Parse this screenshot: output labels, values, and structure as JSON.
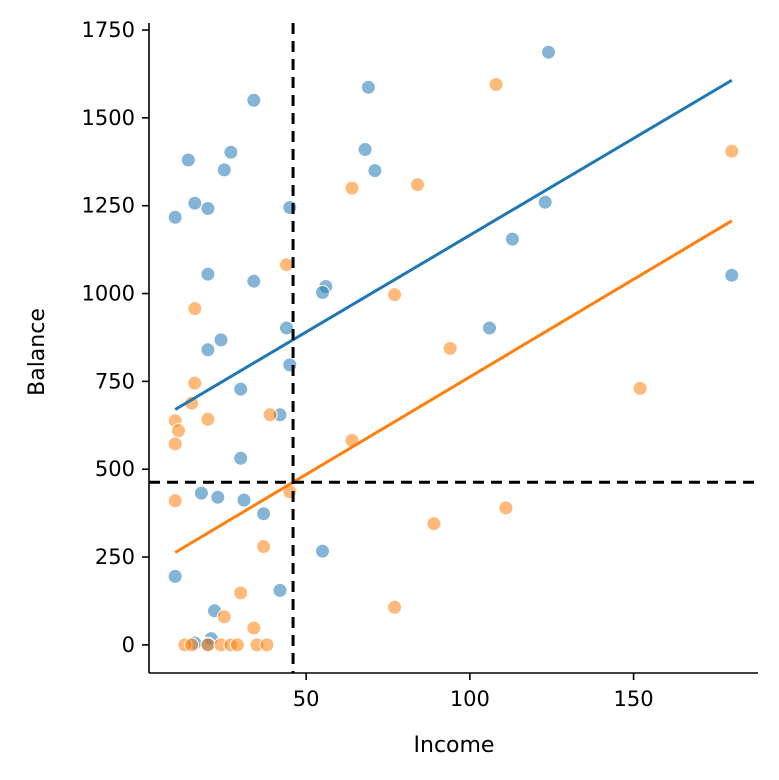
{
  "chart_data": {
    "type": "scatter",
    "title": "",
    "xlabel": "Income",
    "ylabel": "Balance",
    "xlim": [
      2,
      188
    ],
    "ylim": [
      -80,
      1770
    ],
    "xticks": [
      50,
      100,
      150
    ],
    "yticks": [
      0,
      250,
      500,
      750,
      1000,
      1250,
      1500,
      1750
    ],
    "grid": false,
    "legend": "none",
    "colors": {
      "series_1": "#1f77b4",
      "series_2": "#ff7f0e",
      "reference": "#000000"
    },
    "reference_lines": {
      "vertical_x": 46,
      "horizontal_y": 463
    },
    "series": [
      {
        "color": "#1f77b4",
        "points": [
          [
            34,
            1550
          ],
          [
            69,
            1587
          ],
          [
            124,
            1687
          ],
          [
            14,
            1380
          ],
          [
            27,
            1402
          ],
          [
            25,
            1352
          ],
          [
            68,
            1410
          ],
          [
            71,
            1350
          ],
          [
            16,
            1257
          ],
          [
            20,
            1242
          ],
          [
            10,
            1217
          ],
          [
            45,
            1245
          ],
          [
            123,
            1260
          ],
          [
            113,
            1155
          ],
          [
            20,
            1055
          ],
          [
            34,
            1035
          ],
          [
            56,
            1020
          ],
          [
            55,
            1003
          ],
          [
            180,
            1052
          ],
          [
            44,
            902
          ],
          [
            106,
            902
          ],
          [
            24,
            868
          ],
          [
            20,
            840
          ],
          [
            45,
            797
          ],
          [
            30,
            728
          ],
          [
            42,
            655
          ],
          [
            30,
            531
          ],
          [
            18,
            432
          ],
          [
            23,
            420
          ],
          [
            31,
            412
          ],
          [
            37,
            373
          ],
          [
            55,
            267
          ],
          [
            10,
            195
          ],
          [
            42,
            155
          ],
          [
            22,
            97
          ],
          [
            21,
            18
          ],
          [
            16,
            5
          ],
          [
            20,
            2
          ]
        ],
        "fit_line": [
          [
            10,
            670
          ],
          [
            180,
            1607
          ]
        ]
      },
      {
        "color": "#ff7f0e",
        "points": [
          [
            108,
            1595
          ],
          [
            180,
            1405
          ],
          [
            84,
            1310
          ],
          [
            64,
            1300
          ],
          [
            44,
            1082
          ],
          [
            77,
            997
          ],
          [
            16,
            957
          ],
          [
            94,
            844
          ],
          [
            16,
            745
          ],
          [
            152,
            730
          ],
          [
            15,
            688
          ],
          [
            39,
            655
          ],
          [
            10,
            638
          ],
          [
            20,
            642
          ],
          [
            11,
            610
          ],
          [
            10,
            572
          ],
          [
            64,
            582
          ],
          [
            45,
            436
          ],
          [
            10,
            410
          ],
          [
            111,
            390
          ],
          [
            89,
            345
          ],
          [
            37,
            280
          ],
          [
            30,
            148
          ],
          [
            77,
            107
          ],
          [
            25,
            80
          ],
          [
            34,
            48
          ],
          [
            13,
            0
          ],
          [
            15,
            0
          ],
          [
            20,
            0
          ],
          [
            24,
            0
          ],
          [
            27,
            0
          ],
          [
            29,
            0
          ],
          [
            35,
            0
          ],
          [
            38,
            0
          ]
        ],
        "fit_line": [
          [
            10,
            263
          ],
          [
            180,
            1207
          ]
        ]
      }
    ]
  }
}
